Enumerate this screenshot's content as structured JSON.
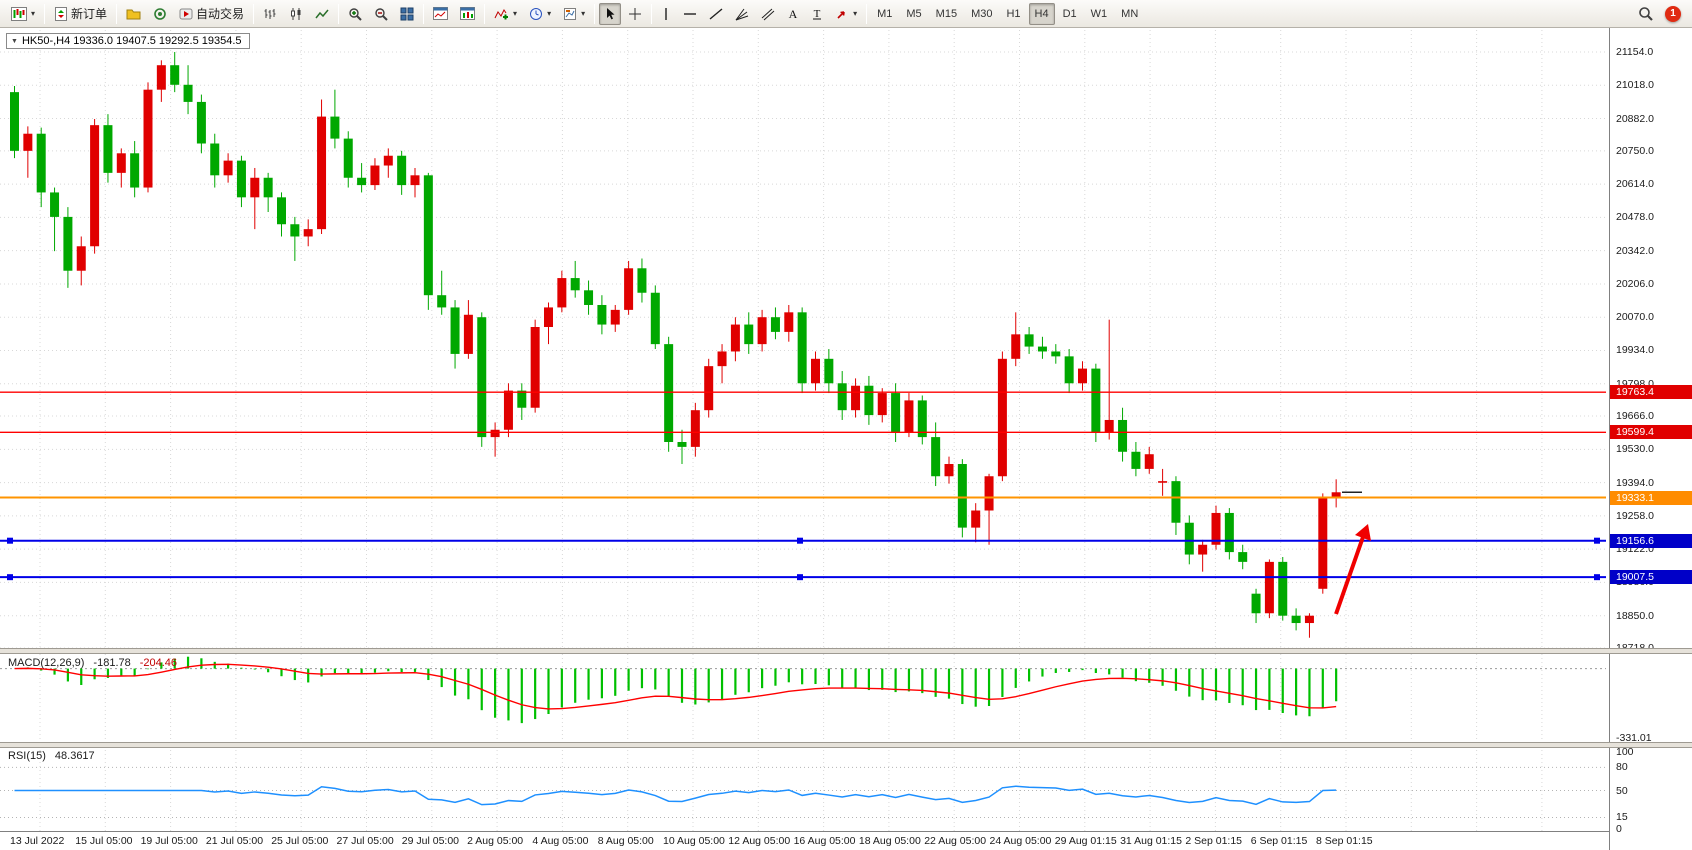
{
  "colors": {
    "candle_up": "#e00000",
    "candle_down": "#00a800",
    "macd_hist": "#00c000",
    "macd_signal": "#ff0000",
    "rsi_line": "#1e90ff",
    "arrow": "#f00000",
    "grid": "#d8d8d8"
  },
  "chart": {
    "header_text": "HK50-,H4  19336.0 19407.5 19292.5 19354.5",
    "collapse_glyph": "▼"
  },
  "toolbar": {
    "groups": [
      {
        "items": [
          {
            "name": "new-chart",
            "icon": "chart-new",
            "dropdown": true
          }
        ]
      },
      {
        "items": [
          {
            "name": "new-order",
            "icon": "order",
            "label": "新订单"
          }
        ]
      },
      {
        "items": [
          {
            "name": "profiles",
            "icon": "profiles"
          },
          {
            "name": "market-watch",
            "icon": "watch"
          },
          {
            "name": "auto-trading",
            "icon": "autotrade",
            "label": "自动交易"
          }
        ]
      },
      {
        "items": [
          {
            "name": "bar-chart-mode",
            "icon": "b-bars"
          },
          {
            "name": "candle-chart-mode",
            "icon": "b-candles"
          },
          {
            "name": "line-chart-mode",
            "icon": "b-line"
          }
        ]
      },
      {
        "items": [
          {
            "name": "zoom-in",
            "icon": "zoom-in"
          },
          {
            "name": "zoom-out",
            "icon": "zoom-out"
          },
          {
            "name": "tile-windows",
            "icon": "tile"
          }
        ]
      },
      {
        "items": [
          {
            "name": "arrange-windows",
            "icon": "win1"
          },
          {
            "name": "cascade-windows",
            "icon": "win2"
          }
        ]
      },
      {
        "items": [
          {
            "name": "indicators",
            "icon": "indicator",
            "dropdown": true
          },
          {
            "name": "periods",
            "icon": "clock",
            "dropdown": true
          },
          {
            "name": "templates",
            "icon": "template",
            "dropdown": true
          }
        ]
      },
      {
        "items": [
          {
            "name": "cursor",
            "icon": "cursor",
            "active": true
          },
          {
            "name": "crosshair",
            "icon": "crosshair"
          }
        ]
      },
      {
        "items": [
          {
            "name": "vertical-line-tool",
            "icon": "vline"
          },
          {
            "name": "horizontal-line-tool",
            "icon": "hline"
          },
          {
            "name": "trendline-tool",
            "icon": "tline"
          },
          {
            "name": "fibonacci-tool",
            "icon": "fibo"
          },
          {
            "name": "channel-tool",
            "icon": "channel"
          },
          {
            "name": "text-tool",
            "icon": "textA"
          },
          {
            "name": "label-tool",
            "icon": "labelT"
          },
          {
            "name": "arrows-tool",
            "icon": "arrowtool",
            "dropdown": true
          }
        ]
      },
      {
        "items": [
          {
            "name": "tf-m1",
            "label": "M1"
          },
          {
            "name": "tf-m5",
            "label": "M5"
          },
          {
            "name": "tf-m15",
            "label": "M15"
          },
          {
            "name": "tf-m30",
            "label": "M30"
          },
          {
            "name": "tf-h1",
            "label": "H1"
          },
          {
            "name": "tf-h4",
            "label": "H4",
            "active": true
          },
          {
            "name": "tf-d1",
            "label": "D1"
          },
          {
            "name": "tf-w1",
            "label": "W1"
          },
          {
            "name": "tf-mn",
            "label": "MN"
          }
        ]
      },
      {
        "right": true,
        "items": [
          {
            "name": "search",
            "icon": "search"
          },
          {
            "name": "notifications",
            "icon": "bell",
            "badge": "1"
          }
        ]
      }
    ]
  },
  "chart_data": {
    "type": "candlestick",
    "symbol": "HK50-",
    "timeframe": "H4",
    "current_ohlc": {
      "open": 19336.0,
      "high": 19407.5,
      "low": 19292.5,
      "close": 19354.5
    },
    "y_range": [
      18718,
      21154
    ],
    "y_ticks": [
      "21154.0",
      "21018.0",
      "20882.0",
      "20750.0",
      "20614.0",
      "20478.0",
      "20342.0",
      "20206.0",
      "20070.0",
      "19934.0",
      "19798.0",
      "19666.0",
      "19530.0",
      "19394.0",
      "19258.0",
      "19122.0",
      "18986.0",
      "18850.0",
      "18718.0"
    ],
    "x_ticks": [
      "13 Jul 2022",
      "15 Jul 05:00",
      "19 Jul 05:00",
      "21 Jul 05:00",
      "25 Jul 05:00",
      "27 Jul 05:00",
      "29 Jul 05:00",
      "2 Aug 05:00",
      "4 Aug 05:00",
      "8 Aug 05:00",
      "10 Aug 05:00",
      "12 Aug 05:00",
      "16 Aug 05:00",
      "18 Aug 05:00",
      "22 Aug 05:00",
      "24 Aug 05:00",
      "29 Aug 01:15",
      "31 Aug 01:15",
      "2 Sep 01:15",
      "6 Sep 01:15",
      "8 Sep 01:15"
    ],
    "candles": [
      [
        20990,
        21015,
        20720,
        20750
      ],
      [
        20750,
        20850,
        20640,
        20820
      ],
      [
        20820,
        20845,
        20520,
        20580
      ],
      [
        20580,
        20600,
        20340,
        20480
      ],
      [
        20480,
        20520,
        20190,
        20260
      ],
      [
        20260,
        20400,
        20200,
        20360
      ],
      [
        20360,
        20880,
        20330,
        20855
      ],
      [
        20855,
        20900,
        20620,
        20660
      ],
      [
        20660,
        20760,
        20600,
        20740
      ],
      [
        20740,
        20790,
        20560,
        20600
      ],
      [
        20600,
        21030,
        20580,
        21000
      ],
      [
        21000,
        21120,
        20950,
        21100
      ],
      [
        21100,
        21154,
        20990,
        21020
      ],
      [
        21020,
        21100,
        20900,
        20950
      ],
      [
        20950,
        20980,
        20740,
        20780
      ],
      [
        20780,
        20820,
        20600,
        20650
      ],
      [
        20650,
        20740,
        20620,
        20710
      ],
      [
        20710,
        20730,
        20520,
        20560
      ],
      [
        20560,
        20680,
        20430,
        20640
      ],
      [
        20640,
        20660,
        20500,
        20560
      ],
      [
        20560,
        20580,
        20400,
        20450
      ],
      [
        20450,
        20480,
        20300,
        20400
      ],
      [
        20400,
        20470,
        20360,
        20430
      ],
      [
        20430,
        20960,
        20410,
        20890
      ],
      [
        20890,
        21000,
        20760,
        20800
      ],
      [
        20800,
        20830,
        20600,
        20640
      ],
      [
        20640,
        20700,
        20580,
        20610
      ],
      [
        20610,
        20720,
        20590,
        20690
      ],
      [
        20690,
        20760,
        20640,
        20730
      ],
      [
        20730,
        20750,
        20570,
        20610
      ],
      [
        20610,
        20680,
        20560,
        20650
      ],
      [
        20650,
        20660,
        20100,
        20160
      ],
      [
        20160,
        20260,
        20080,
        20110
      ],
      [
        20110,
        20140,
        19860,
        19920
      ],
      [
        19920,
        20140,
        19900,
        20080
      ],
      [
        20070,
        20090,
        19540,
        19580
      ],
      [
        19580,
        19640,
        19500,
        19610
      ],
      [
        19610,
        19800,
        19580,
        19770
      ],
      [
        19770,
        19800,
        19650,
        19700
      ],
      [
        19700,
        20060,
        19680,
        20030
      ],
      [
        20030,
        20130,
        19960,
        20110
      ],
      [
        20110,
        20260,
        20090,
        20230
      ],
      [
        20230,
        20300,
        20150,
        20180
      ],
      [
        20180,
        20220,
        20080,
        20120
      ],
      [
        20120,
        20160,
        20000,
        20040
      ],
      [
        20040,
        20120,
        20010,
        20100
      ],
      [
        20100,
        20300,
        20080,
        20270
      ],
      [
        20270,
        20310,
        20130,
        20170
      ],
      [
        20170,
        20200,
        19940,
        19960
      ],
      [
        19960,
        19990,
        19520,
        19560
      ],
      [
        19560,
        19610,
        19470,
        19540
      ],
      [
        19540,
        19720,
        19500,
        19690
      ],
      [
        19690,
        19900,
        19660,
        19870
      ],
      [
        19870,
        19960,
        19800,
        19930
      ],
      [
        19930,
        20070,
        19890,
        20040
      ],
      [
        20040,
        20090,
        19920,
        19960
      ],
      [
        19960,
        20100,
        19930,
        20070
      ],
      [
        20070,
        20110,
        19980,
        20010
      ],
      [
        20010,
        20120,
        19970,
        20090
      ],
      [
        20090,
        20110,
        19760,
        19800
      ],
      [
        19800,
        19930,
        19770,
        19900
      ],
      [
        19900,
        19940,
        19760,
        19800
      ],
      [
        19800,
        19850,
        19650,
        19690
      ],
      [
        19690,
        19820,
        19660,
        19790
      ],
      [
        19790,
        19830,
        19630,
        19670
      ],
      [
        19670,
        19780,
        19640,
        19760
      ],
      [
        19760,
        19800,
        19560,
        19600
      ],
      [
        19600,
        19760,
        19580,
        19730
      ],
      [
        19730,
        19750,
        19550,
        19580
      ],
      [
        19580,
        19640,
        19380,
        19420
      ],
      [
        19420,
        19500,
        19390,
        19470
      ],
      [
        19470,
        19490,
        19170,
        19210
      ],
      [
        19210,
        19310,
        19150,
        19280
      ],
      [
        19280,
        19430,
        19140,
        19420
      ],
      [
        19420,
        19930,
        19400,
        19900
      ],
      [
        19900,
        20090,
        19870,
        20000
      ],
      [
        20000,
        20030,
        19920,
        19950
      ],
      [
        19950,
        19990,
        19900,
        19930
      ],
      [
        19930,
        19960,
        19880,
        19910
      ],
      [
        19910,
        19940,
        19760,
        19800
      ],
      [
        19800,
        19890,
        19770,
        19860
      ],
      [
        19860,
        19880,
        19560,
        19600
      ],
      [
        19600,
        20060,
        19570,
        19650
      ],
      [
        19650,
        19700,
        19480,
        19520
      ],
      [
        19520,
        19560,
        19420,
        19450
      ],
      [
        19450,
        19540,
        19430,
        19510
      ],
      [
        19400,
        19450,
        19340,
        19400
      ],
      [
        19400,
        19420,
        19180,
        19230
      ],
      [
        19230,
        19260,
        19060,
        19100
      ],
      [
        19100,
        19160,
        19030,
        19140
      ],
      [
        19140,
        19300,
        19120,
        19270
      ],
      [
        19270,
        19290,
        19080,
        19110
      ],
      [
        19110,
        19140,
        19040,
        19070
      ],
      [
        18940,
        18960,
        18820,
        18860
      ],
      [
        18860,
        19080,
        18840,
        19070
      ],
      [
        19070,
        19090,
        18830,
        18850
      ],
      [
        18850,
        18880,
        18790,
        18820
      ],
      [
        18820,
        18860,
        18760,
        18850
      ],
      [
        18960,
        19350,
        18940,
        19330
      ],
      [
        19336,
        19407.5,
        19292.5,
        19354.5
      ]
    ],
    "hlines": [
      {
        "value": 19763.4,
        "label": "19763.4",
        "color": "red"
      },
      {
        "value": 19599.4,
        "label": "19599.4",
        "color": "red"
      },
      {
        "value": 19333.1,
        "label": "19333.1",
        "color": "orange"
      },
      {
        "value": 19156.6,
        "label": "19156.6",
        "color": "blue",
        "handles": true
      },
      {
        "value": 19007.5,
        "label": "19007.5",
        "color": "blue",
        "handles": true
      }
    ],
    "annotations": [
      {
        "type": "up-arrow",
        "color": "#f00000",
        "near": "latest-candles"
      }
    ],
    "indicators": [
      {
        "name": "MACD",
        "params": [
          12,
          26,
          9
        ],
        "display": "MACD(12,26,9)",
        "values_text": [
          "-181.78",
          "-204.46"
        ],
        "scale_label": "-331.01",
        "scale_label_value": -331.01
      },
      {
        "name": "RSI",
        "params": [
          15
        ],
        "display": "RSI(15)",
        "value_text": "48.3617",
        "scale_labels": [
          "100",
          "80",
          "50",
          "15",
          "0"
        ],
        "levels": [
          80,
          50,
          15
        ]
      }
    ]
  }
}
